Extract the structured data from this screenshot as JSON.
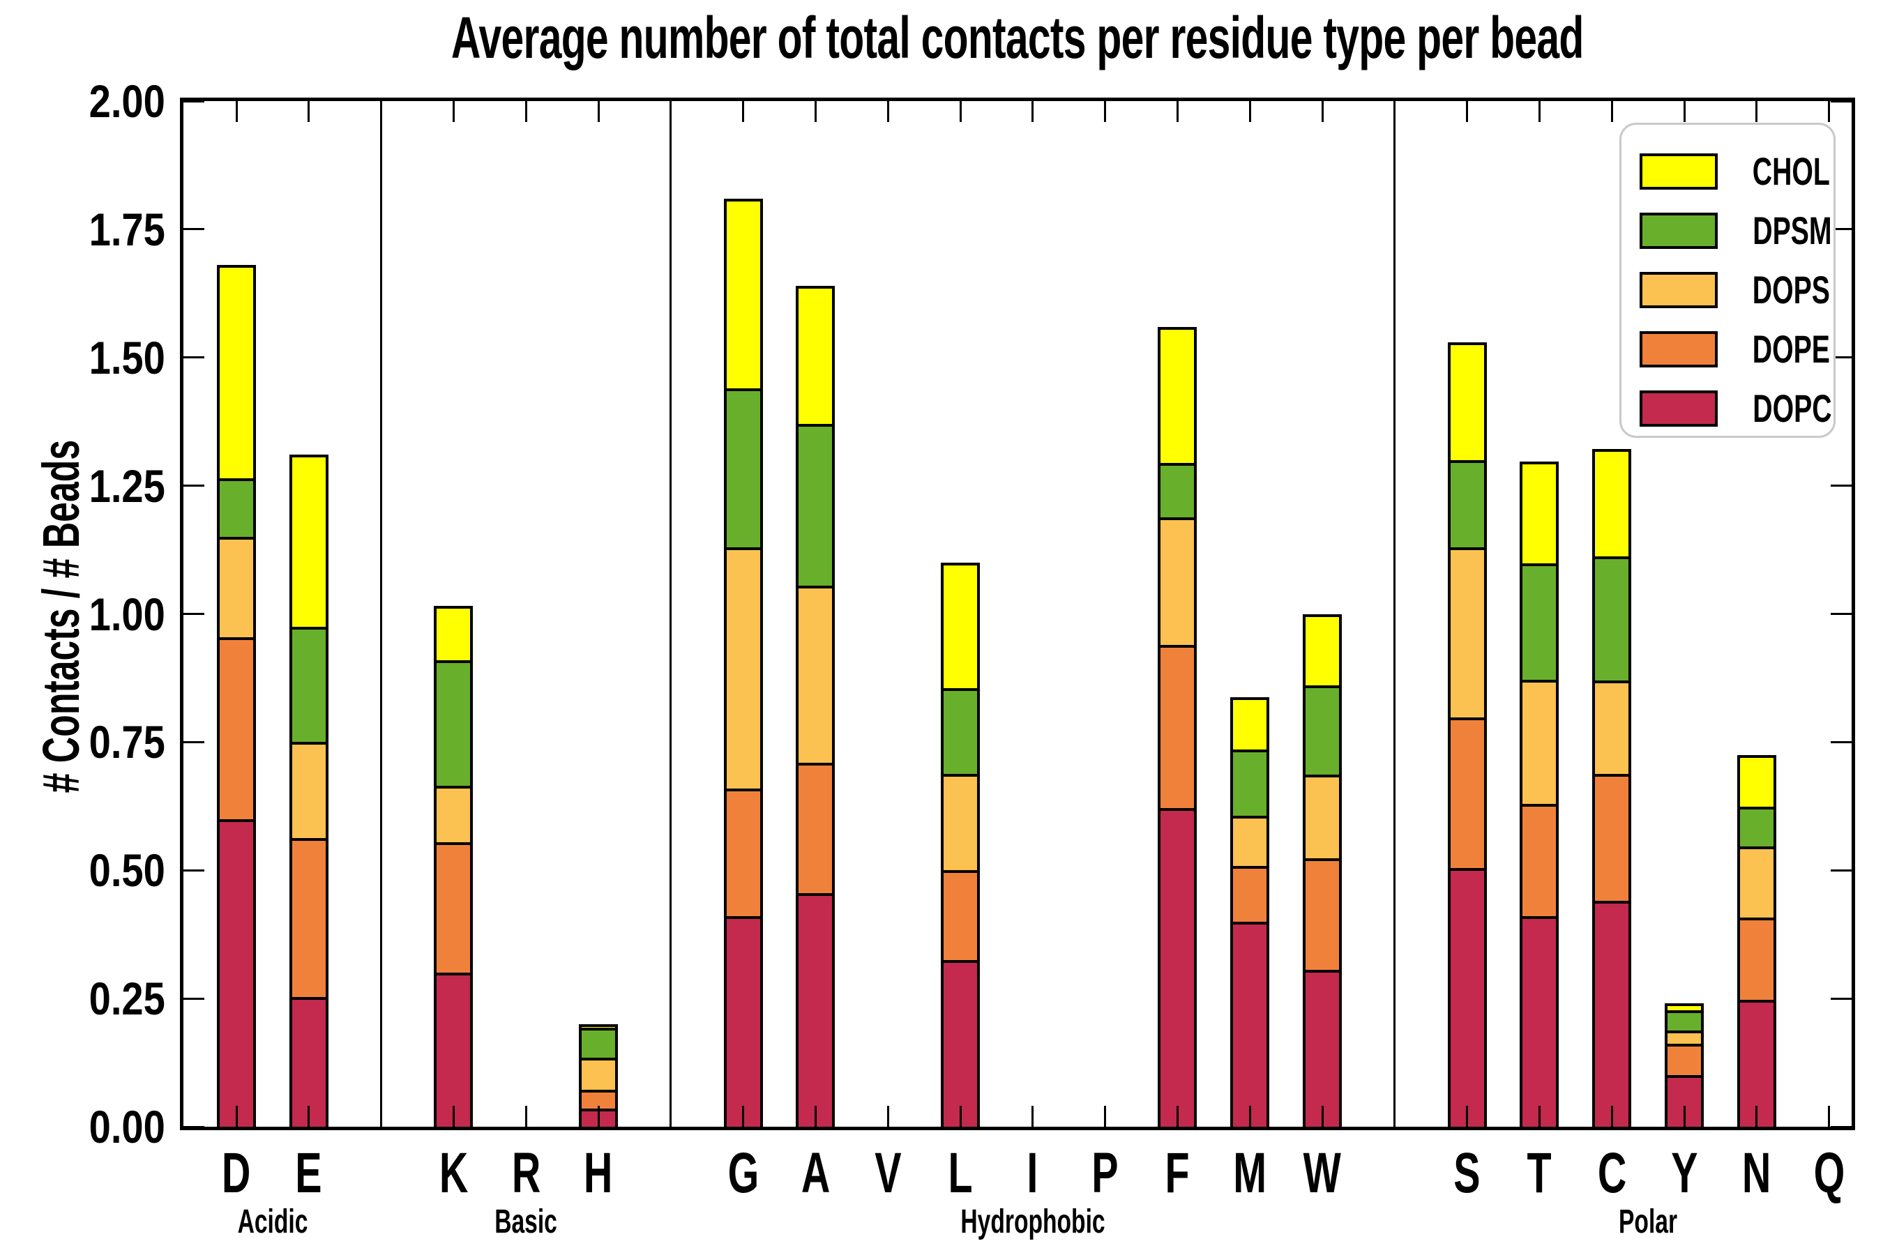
{
  "title": "Average number of total contacts per residue type per bead",
  "y_axis_label": "# Contacts / # Beads",
  "chart_data": {
    "type": "bar",
    "stacked": true,
    "title": "Average number of total contacts per residue type per bead",
    "xlabel": "",
    "ylabel": "# Contacts / # Beads",
    "ylim": [
      0.0,
      2.0
    ],
    "ytick_labels": [
      "0.00",
      "0.25",
      "0.50",
      "0.75",
      "1.00",
      "1.25",
      "1.50",
      "1.75",
      "2.00"
    ],
    "grid": false,
    "legend_position": "upper right",
    "legend_order": [
      "CHOL",
      "DPSM",
      "DOPS",
      "DOPE",
      "DOPC"
    ],
    "series_order_bottom_to_top": [
      "DOPC",
      "DOPE",
      "DOPS",
      "DPSM",
      "CHOL"
    ],
    "colors": {
      "DOPC": "#C32A4D",
      "DOPE": "#F0813B",
      "DOPS": "#FBC151",
      "DPSM": "#68AF2C",
      "CHOL": "#FFFF00"
    },
    "groups": [
      {
        "name": "Acidic",
        "categories": [
          "D",
          "E"
        ]
      },
      {
        "name": "Basic",
        "categories": [
          "K",
          "R",
          "H"
        ]
      },
      {
        "name": "Hydrophobic",
        "categories": [
          "G",
          "A",
          "V",
          "L",
          "I",
          "P",
          "F",
          "M",
          "W"
        ]
      },
      {
        "name": "Polar",
        "categories": [
          "S",
          "T",
          "C",
          "Y",
          "N",
          "Q"
        ]
      }
    ],
    "categories": [
      "D",
      "E",
      "K",
      "R",
      "H",
      "G",
      "A",
      "V",
      "L",
      "I",
      "P",
      "F",
      "M",
      "W",
      "S",
      "T",
      "C",
      "Y",
      "N",
      "Q"
    ],
    "values": {
      "D": {
        "DOPC": 0.6,
        "DOPE": 0.355,
        "DOPS": 0.195,
        "DPSM": 0.115,
        "CHOL": 0.415
      },
      "E": {
        "DOPC": 0.253,
        "DOPE": 0.31,
        "DOPS": 0.187,
        "DPSM": 0.225,
        "CHOL": 0.335
      },
      "K": {
        "DOPC": 0.3,
        "DOPE": 0.255,
        "DOPS": 0.11,
        "DPSM": 0.245,
        "CHOL": 0.105
      },
      "R": {
        "DOPC": 0.0,
        "DOPE": 0.0,
        "DOPS": 0.0,
        "DPSM": 0.0,
        "CHOL": 0.0
      },
      "H": {
        "DOPC": 0.035,
        "DOPE": 0.037,
        "DOPS": 0.063,
        "DPSM": 0.058,
        "CHOL": 0.007
      },
      "G": {
        "DOPC": 0.41,
        "DOPE": 0.25,
        "DOPS": 0.47,
        "DPSM": 0.31,
        "CHOL": 0.37
      },
      "A": {
        "DOPC": 0.455,
        "DOPE": 0.255,
        "DOPS": 0.345,
        "DPSM": 0.315,
        "CHOL": 0.27
      },
      "V": {
        "DOPC": 0.0,
        "DOPE": 0.0,
        "DOPS": 0.0,
        "DPSM": 0.0,
        "CHOL": 0.0
      },
      "L": {
        "DOPC": 0.325,
        "DOPE": 0.175,
        "DOPS": 0.188,
        "DPSM": 0.167,
        "CHOL": 0.245
      },
      "I": {
        "DOPC": 0.0,
        "DOPE": 0.0,
        "DOPS": 0.0,
        "DPSM": 0.0,
        "CHOL": 0.0
      },
      "P": {
        "DOPC": 0.0,
        "DOPE": 0.0,
        "DOPS": 0.0,
        "DPSM": 0.0,
        "CHOL": 0.0
      },
      "F": {
        "DOPC": 0.622,
        "DOPE": 0.318,
        "DOPS": 0.248,
        "DPSM": 0.107,
        "CHOL": 0.265
      },
      "M": {
        "DOPC": 0.4,
        "DOPE": 0.108,
        "DOPS": 0.099,
        "DPSM": 0.128,
        "CHOL": 0.103
      },
      "W": {
        "DOPC": 0.306,
        "DOPE": 0.217,
        "DOPS": 0.163,
        "DPSM": 0.174,
        "CHOL": 0.14
      },
      "S": {
        "DOPC": 0.505,
        "DOPE": 0.293,
        "DOPS": 0.332,
        "DPSM": 0.17,
        "CHOL": 0.23
      },
      "T": {
        "DOPC": 0.41,
        "DOPE": 0.22,
        "DOPS": 0.242,
        "DPSM": 0.226,
        "CHOL": 0.199
      },
      "C": {
        "DOPC": 0.44,
        "DOPE": 0.248,
        "DOPS": 0.182,
        "DPSM": 0.242,
        "CHOL": 0.21
      },
      "Y": {
        "DOPC": 0.101,
        "DOPE": 0.061,
        "DOPS": 0.026,
        "DPSM": 0.039,
        "CHOL": 0.013
      },
      "N": {
        "DOPC": 0.247,
        "DOPE": 0.161,
        "DOPS": 0.138,
        "DPSM": 0.078,
        "CHOL": 0.1
      },
      "Q": {
        "DOPC": 0.0,
        "DOPE": 0.0,
        "DOPS": 0.0,
        "DPSM": 0.0,
        "CHOL": 0.0
      }
    }
  }
}
